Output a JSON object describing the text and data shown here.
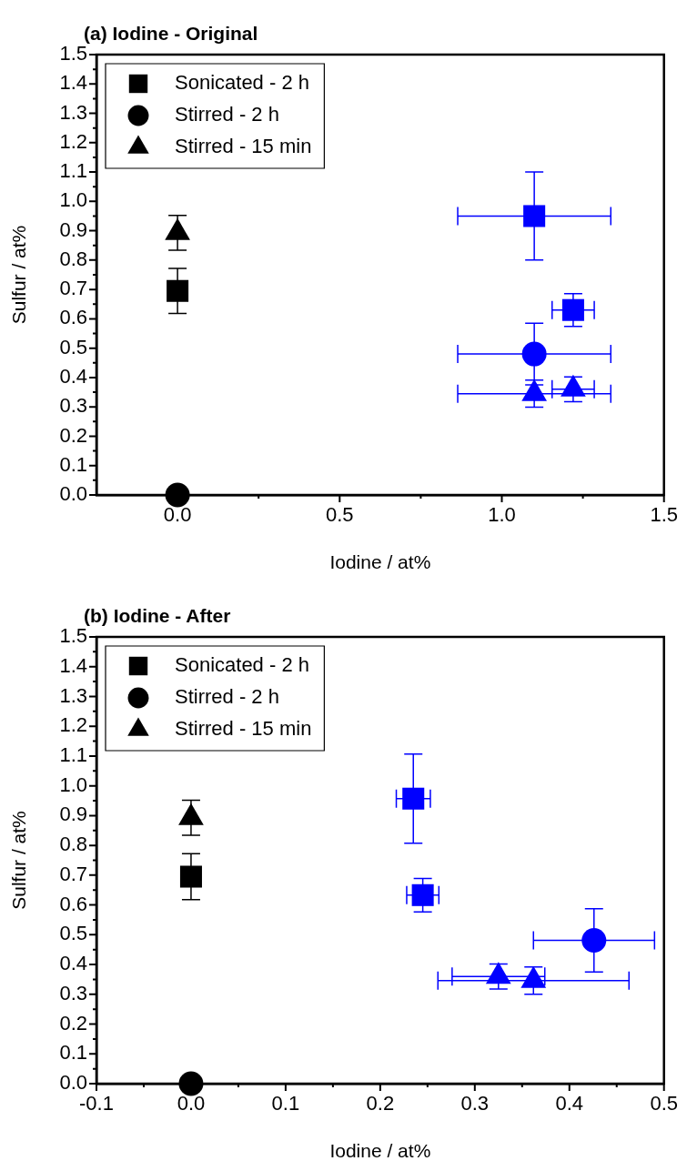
{
  "chart_data": [
    {
      "type": "scatter",
      "title": "(a) Iodine - Original",
      "xlabel": "Iodine / at%",
      "ylabel": "Sulfur / at%",
      "legend": "top left",
      "xlim": [
        -0.25,
        1.5
      ],
      "xticks": [
        {
          "value": 0,
          "label": "0.0"
        },
        {
          "value": 0.25,
          "label": null
        },
        0.5,
        {
          "value": 0.75,
          "label": null
        },
        {
          "value": 1,
          "label": "1.0"
        },
        {
          "value": 1.25,
          "label": null
        },
        1.5
      ],
      "ylim": [
        0,
        1.5
      ],
      "yticks": [
        {
          "value": 0,
          "label": "0.0"
        },
        {
          "value": 0.05,
          "label": null
        },
        0.1,
        {
          "value": 0.15,
          "label": null
        },
        0.2,
        {
          "value": 0.25,
          "label": null
        },
        0.3,
        {
          "value": 0.35,
          "label": null
        },
        0.4,
        {
          "value": 0.45,
          "label": null
        },
        0.5,
        {
          "value": 0.55,
          "label": null
        },
        0.6,
        {
          "value": 0.65,
          "label": null
        },
        0.7,
        {
          "value": 0.75,
          "label": null
        },
        0.8,
        {
          "value": 0.85,
          "label": null
        },
        0.9,
        {
          "value": 0.95,
          "label": null
        },
        {
          "value": 1,
          "label": "1.0"
        },
        {
          "value": 1.05,
          "label": null
        },
        1.1,
        {
          "value": 1.15,
          "label": null
        },
        1.2,
        {
          "value": 1.25,
          "label": null
        },
        1.3,
        {
          "value": 1.35,
          "label": null
        },
        1.4,
        {
          "value": 1.45,
          "label": null
        },
        1.5
      ],
      "series": [
        {
          "name": "Sonicated - 2 h",
          "color": "#000000",
          "marker": "square",
          "x": [
            0
          ],
          "values": [
            0.695
          ],
          "errors": [
            0.077
          ]
        },
        {
          "name": "Stirred - 2 h",
          "color": "#000000",
          "marker": "circle",
          "x": [
            0
          ],
          "values": [
            0
          ]
        },
        {
          "name": "Stirred - 15 min",
          "color": "#000000",
          "marker": "triangle",
          "x": [
            0
          ],
          "values": [
            0.893
          ],
          "errors": [
            0.059
          ]
        },
        {
          "color": "#0000ff",
          "marker": "square",
          "x": [
            1.1,
            1.22
          ],
          "values": [
            0.95,
            0.63
          ],
          "errors": [
            0.15,
            0.056
          ],
          "xerrors": [
            0.236,
            0.065
          ]
        },
        {
          "color": "#0000ff",
          "marker": "circle",
          "x": [
            1.1
          ],
          "values": [
            0.48
          ],
          "errors": [
            0.105
          ],
          "xerrors": [
            0.236
          ]
        },
        {
          "color": "#0000ff",
          "marker": "triangle",
          "x": [
            1.1,
            1.22
          ],
          "values": [
            0.345,
            0.36
          ],
          "errors": [
            0.046,
            0.042
          ],
          "xerrors": [
            0.236,
            0.065
          ]
        }
      ]
    },
    {
      "type": "scatter",
      "title": "(b) Iodine - After",
      "xlabel": "Iodine / at%",
      "ylabel": "Sulfur / at%",
      "legend": "top left",
      "xlim": [
        -0.1,
        0.5
      ],
      "xticks": [
        -0.1,
        {
          "value": -0.05,
          "label": null
        },
        {
          "value": 0,
          "label": "0.0"
        },
        {
          "value": 0.05,
          "label": null
        },
        0.1,
        {
          "value": 0.15,
          "label": null
        },
        0.2,
        {
          "value": 0.25,
          "label": null
        },
        0.3,
        {
          "value": 0.35,
          "label": null
        },
        0.4,
        {
          "value": 0.45,
          "label": null
        },
        0.5
      ],
      "ylim": [
        0,
        1.5
      ],
      "yticks": [
        {
          "value": 0,
          "label": "0.0"
        },
        {
          "value": 0.05,
          "label": null
        },
        0.1,
        {
          "value": 0.15,
          "label": null
        },
        0.2,
        {
          "value": 0.25,
          "label": null
        },
        0.3,
        {
          "value": 0.35,
          "label": null
        },
        0.4,
        {
          "value": 0.45,
          "label": null
        },
        0.5,
        {
          "value": 0.55,
          "label": null
        },
        0.6,
        {
          "value": 0.65,
          "label": null
        },
        0.7,
        {
          "value": 0.75,
          "label": null
        },
        0.8,
        {
          "value": 0.85,
          "label": null
        },
        0.9,
        {
          "value": 0.95,
          "label": null
        },
        {
          "value": 1,
          "label": "1.0"
        },
        {
          "value": 1.05,
          "label": null
        },
        1.1,
        {
          "value": 1.15,
          "label": null
        },
        1.2,
        {
          "value": 1.25,
          "label": null
        },
        1.3,
        {
          "value": 1.35,
          "label": null
        },
        1.4,
        {
          "value": 1.45,
          "label": null
        },
        1.5
      ],
      "series": [
        {
          "name": "Sonicated - 2 h",
          "color": "#000000",
          "marker": "square",
          "x": [
            0
          ],
          "values": [
            0.695
          ],
          "errors": [
            0.077
          ]
        },
        {
          "name": "Stirred - 2 h",
          "color": "#000000",
          "marker": "circle",
          "x": [
            0
          ],
          "values": [
            0
          ]
        },
        {
          "name": "Stirred - 15 min",
          "color": "#000000",
          "marker": "triangle",
          "x": [
            0
          ],
          "values": [
            0.893
          ],
          "errors": [
            0.059
          ]
        },
        {
          "color": "#0000ff",
          "marker": "square",
          "x": [
            0.235,
            0.245
          ],
          "values": [
            0.957,
            0.633
          ],
          "errors": [
            0.15,
            0.056
          ],
          "xerrors": [
            0.018,
            0.017
          ]
        },
        {
          "color": "#0000ff",
          "marker": "circle",
          "x": [
            0.426
          ],
          "values": [
            0.481
          ],
          "errors": [
            0.106
          ],
          "xerrors": [
            0.064
          ]
        },
        {
          "color": "#0000ff",
          "marker": "triangle",
          "x": [
            0.325,
            0.362
          ],
          "values": [
            0.36,
            0.346
          ],
          "errors": [
            0.042,
            0.046
          ],
          "xerrors": [
            0.049,
            0.101
          ]
        }
      ]
    }
  ]
}
